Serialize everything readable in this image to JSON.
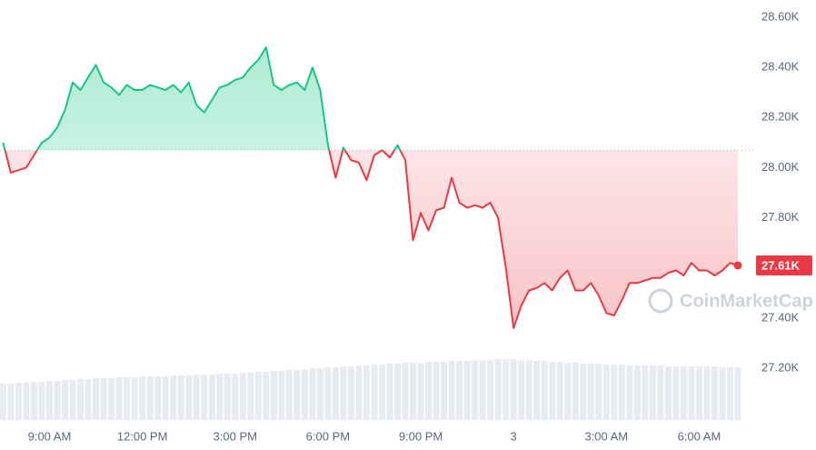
{
  "chart_data": {
    "type": "line",
    "x": [
      7.5,
      7.75,
      8,
      8.25,
      8.5,
      8.75,
      9,
      9.25,
      9.5,
      9.75,
      10,
      10.25,
      10.5,
      10.75,
      11,
      11.25,
      11.5,
      11.75,
      12,
      12.25,
      12.5,
      12.75,
      13,
      13.25,
      13.5,
      13.75,
      14,
      14.25,
      14.5,
      14.75,
      15,
      15.25,
      15.5,
      15.75,
      16,
      16.25,
      16.5,
      16.75,
      17,
      17.25,
      17.5,
      17.75,
      18,
      18.25,
      18.5,
      18.75,
      19,
      19.25,
      19.5,
      19.75,
      20,
      20.25,
      20.5,
      20.75,
      21,
      21.25,
      21.5,
      21.75,
      22,
      22.25,
      22.5,
      22.75,
      23,
      23.25,
      23.5,
      23.75,
      24,
      24.25,
      24.5,
      24.75,
      25,
      25.25,
      25.5,
      25.75,
      26,
      26.25,
      26.5,
      26.75,
      27,
      27.25,
      27.5,
      27.75,
      28,
      28.25,
      28.5,
      28.75,
      29,
      29.25,
      29.5,
      29.75,
      30,
      30.25,
      30.5,
      30.75,
      31,
      31.25
    ],
    "values": [
      28.1,
      27.98,
      27.99,
      28.0,
      28.05,
      28.1,
      28.12,
      28.16,
      28.23,
      28.34,
      28.31,
      28.36,
      28.41,
      28.34,
      28.32,
      28.29,
      28.33,
      28.31,
      28.31,
      28.33,
      28.32,
      28.31,
      28.33,
      28.3,
      28.34,
      28.25,
      28.22,
      28.27,
      28.32,
      28.33,
      28.35,
      28.36,
      28.4,
      28.43,
      28.48,
      28.33,
      28.31,
      28.33,
      28.34,
      28.31,
      28.4,
      28.31,
      28.09,
      27.96,
      28.08,
      28.03,
      28.02,
      27.95,
      28.05,
      28.07,
      28.04,
      28.09,
      28.03,
      27.71,
      27.82,
      27.75,
      27.83,
      27.84,
      27.96,
      27.86,
      27.84,
      27.85,
      27.84,
      27.86,
      27.8,
      27.6,
      27.36,
      27.45,
      27.51,
      27.52,
      27.54,
      27.51,
      27.56,
      27.59,
      27.51,
      27.51,
      27.54,
      27.49,
      27.42,
      27.41,
      27.47,
      27.54,
      27.54,
      27.55,
      27.56,
      27.56,
      27.58,
      27.59,
      27.57,
      27.62,
      27.59,
      27.59,
      27.57,
      27.59,
      27.62,
      27.61
    ],
    "volume": [
      40,
      40,
      41,
      41,
      42,
      42,
      43,
      43,
      44,
      44,
      45,
      45,
      46,
      46,
      46,
      47,
      47,
      47,
      48,
      48,
      48,
      48,
      49,
      49,
      49,
      50,
      50,
      50,
      51,
      51,
      51,
      52,
      52,
      53,
      53,
      54,
      54,
      55,
      55,
      56,
      57,
      57,
      58,
      58,
      59,
      59,
      60,
      60,
      61,
      61,
      62,
      62,
      63,
      63,
      63,
      64,
      64,
      64,
      65,
      65,
      65,
      66,
      66,
      66,
      67,
      67,
      67,
      66,
      66,
      65,
      65,
      64,
      64,
      63,
      63,
      62,
      62,
      62,
      61,
      61,
      61,
      60,
      60,
      60,
      60,
      60,
      59,
      59,
      59,
      59,
      59,
      59,
      59,
      58,
      58,
      58
    ],
    "reference": 28.07,
    "last_price": {
      "value": 27.61,
      "label": "27.61K"
    },
    "up_color": "#16c784",
    "down_color": "#ea3943",
    "watermark": "CoinMarketCap",
    "xlim": [
      7.4,
      31.25
    ],
    "ylim": [
      27.2,
      28.6
    ],
    "xticks": [
      {
        "value": 9,
        "label": "9:00 AM"
      },
      {
        "value": 12,
        "label": "12:00 PM"
      },
      {
        "value": 15,
        "label": "3:00 PM"
      },
      {
        "value": 18,
        "label": "6:00 PM"
      },
      {
        "value": 21,
        "label": "9:00 PM"
      },
      {
        "value": 24,
        "label": "3"
      },
      {
        "value": 27,
        "label": "3:00 AM"
      },
      {
        "value": 30,
        "label": "6:00 AM"
      }
    ],
    "yticks": [
      {
        "value": 27.2,
        "label": "27.20K"
      },
      {
        "value": 27.4,
        "label": "27.40K"
      },
      {
        "value": 27.8,
        "label": "27.80K"
      },
      {
        "value": 28.0,
        "label": "28.00K"
      },
      {
        "value": 28.2,
        "label": "28.20K"
      },
      {
        "value": 28.4,
        "label": "28.40K"
      },
      {
        "value": 28.6,
        "label": "28.60K"
      }
    ]
  }
}
